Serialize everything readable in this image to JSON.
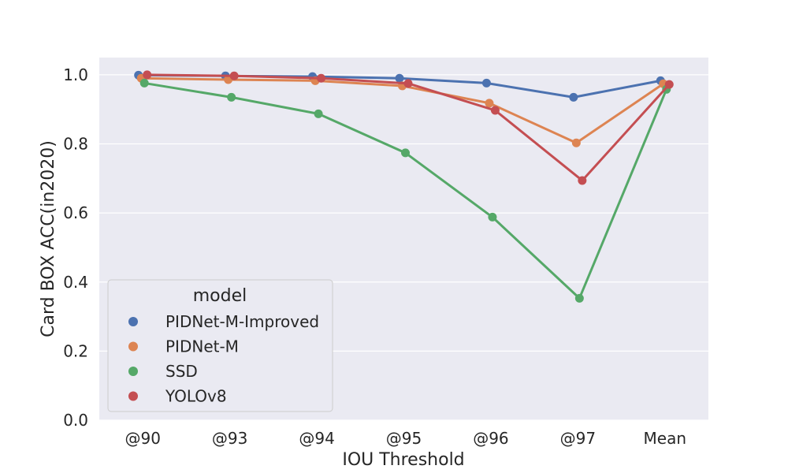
{
  "chart_data": {
    "type": "line",
    "title": "",
    "xlabel": "IOU Threshold",
    "ylabel": "Card BOX ACC(in2020)",
    "categories": [
      "@90",
      "@93",
      "@94",
      "@95",
      "@96",
      "@97",
      "Mean"
    ],
    "ylim": [
      0.0,
      1.05
    ],
    "yticks": [
      0.0,
      0.2,
      0.4,
      0.6,
      0.8,
      1.0
    ],
    "ytick_labels": [
      "0.0",
      "0.2",
      "0.4",
      "0.6",
      "0.8",
      "1.0"
    ],
    "grid": true,
    "legend": {
      "title": "model",
      "placement": "lower-left"
    },
    "series": [
      {
        "name": "PIDNet-M-Improved",
        "color": "#4c72b0",
        "values": [
          0.999,
          0.997,
          0.995,
          0.99,
          0.976,
          0.935,
          0.983
        ]
      },
      {
        "name": "PIDNet-M",
        "color": "#dd8452",
        "values": [
          0.99,
          0.986,
          0.983,
          0.968,
          0.918,
          0.803,
          0.974
        ]
      },
      {
        "name": "SSD",
        "color": "#55a868",
        "values": [
          0.976,
          0.935,
          0.887,
          0.774,
          0.588,
          0.353,
          0.958
        ]
      },
      {
        "name": "YOLOv8",
        "color": "#c44e52",
        "values": [
          1.0,
          0.997,
          0.99,
          0.975,
          0.897,
          0.694,
          0.972
        ]
      }
    ]
  }
}
